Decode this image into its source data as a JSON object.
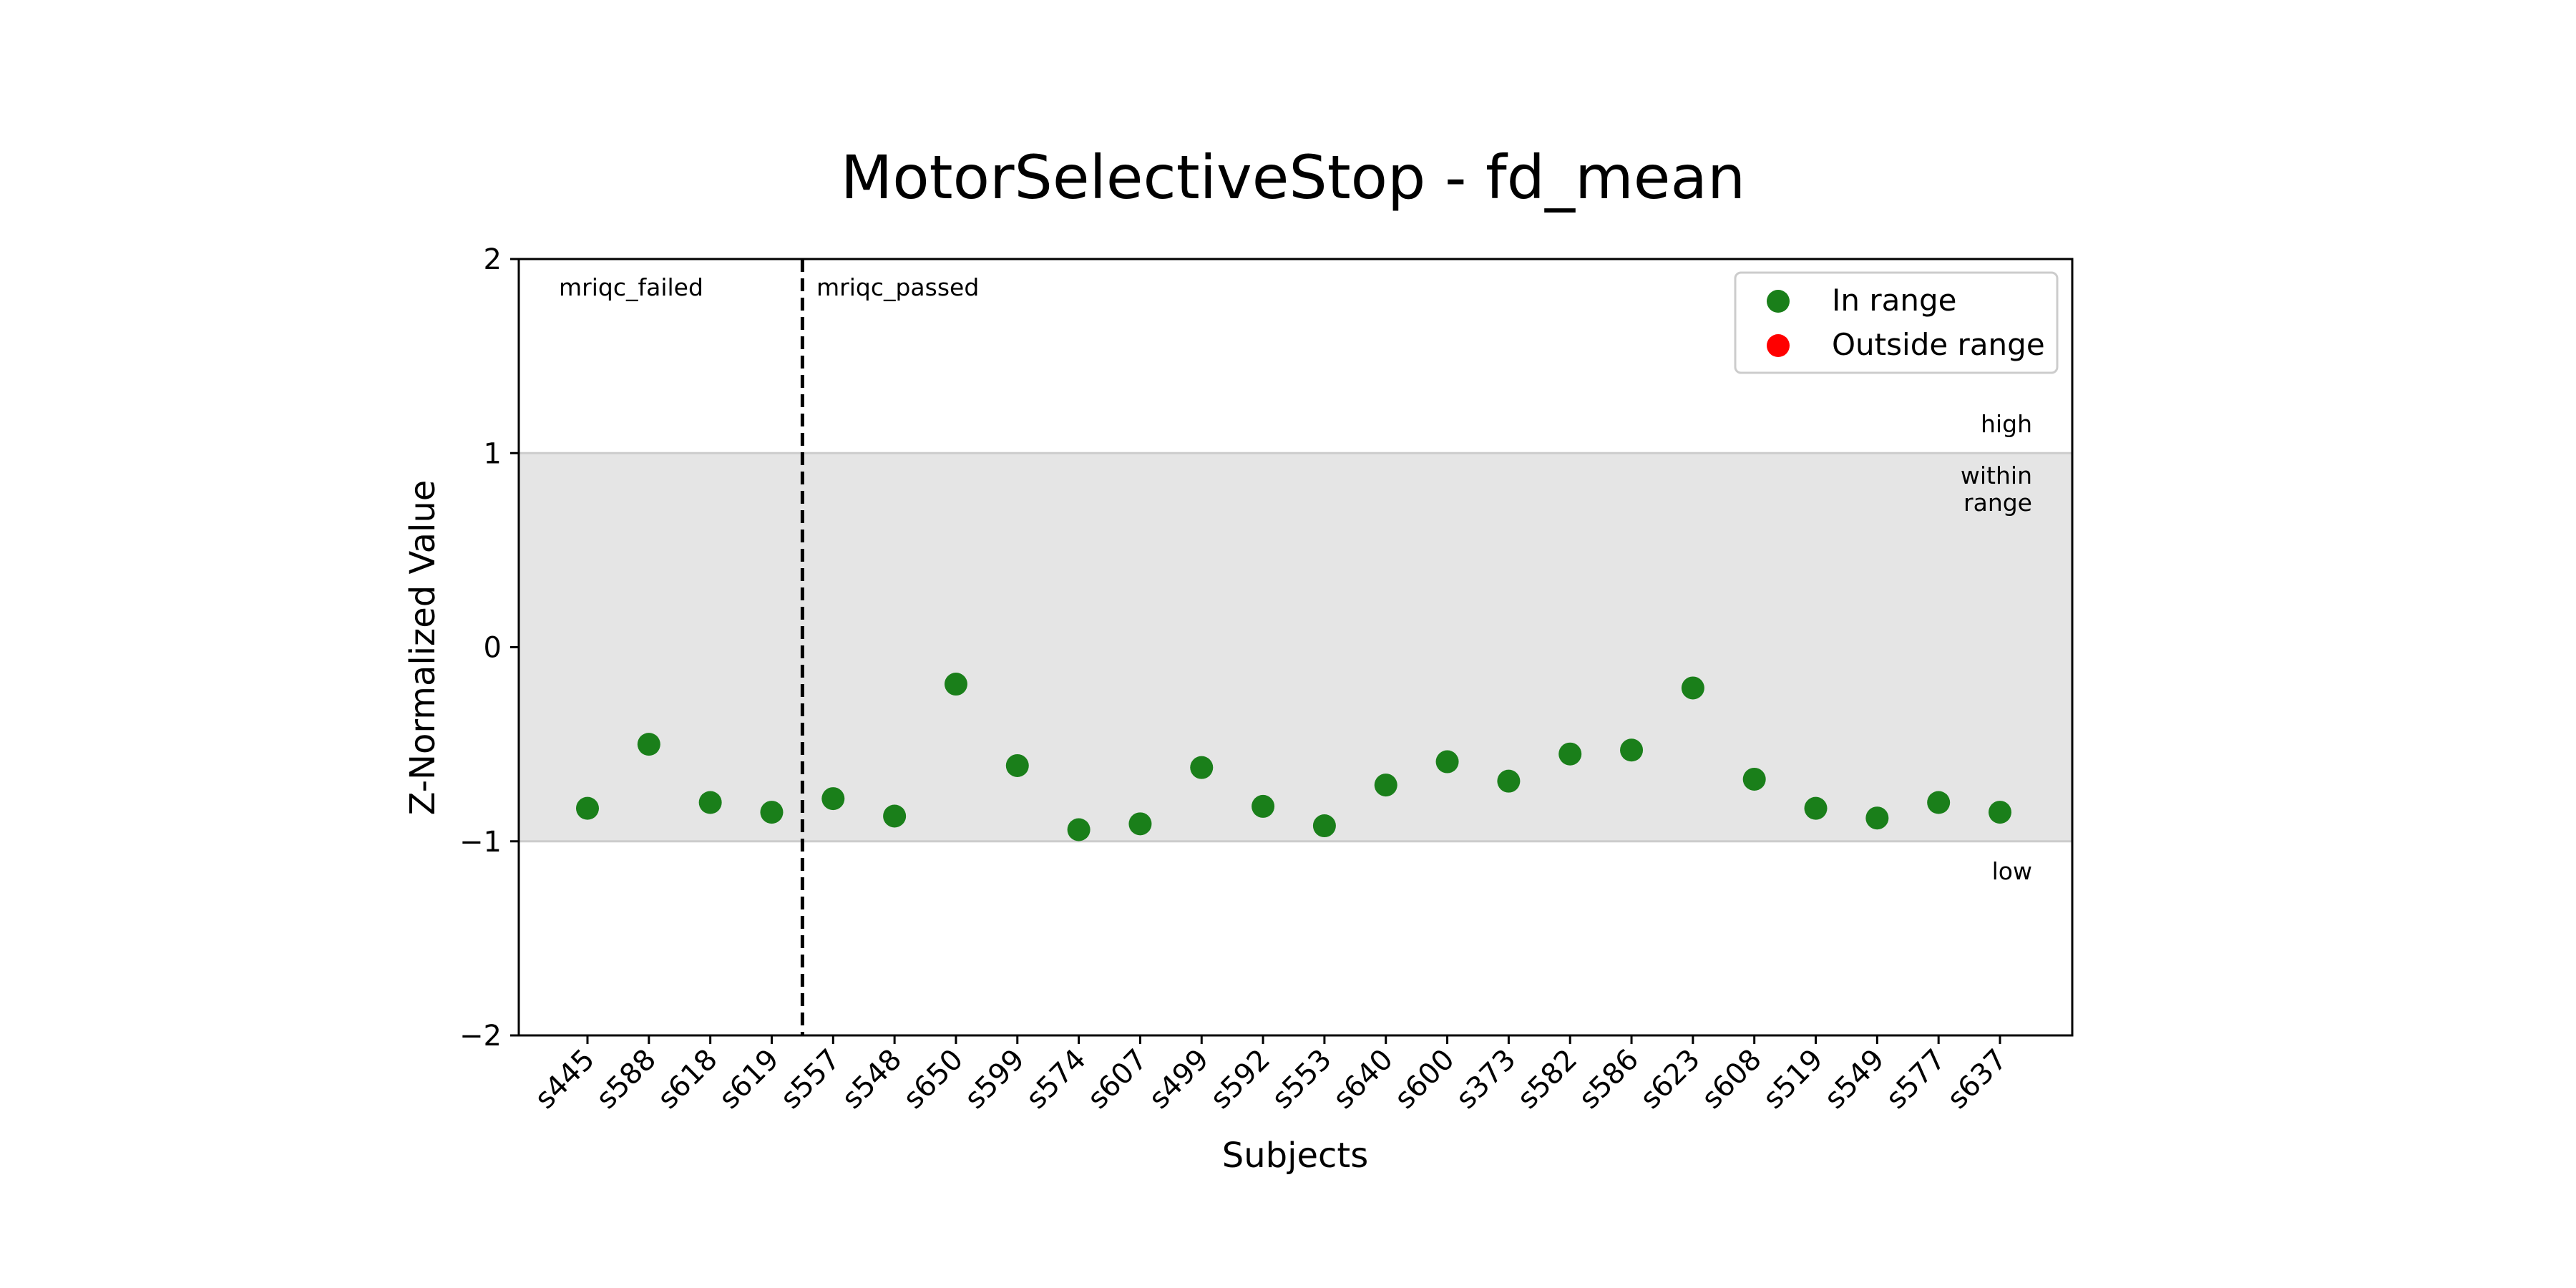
{
  "chart_data": {
    "type": "scatter",
    "title": "MotorSelectiveStop - fd_mean",
    "xlabel": "Subjects",
    "ylabel": "Z-Normalized Value",
    "ylim": [
      -2,
      2
    ],
    "yticks": [
      2,
      1,
      0,
      -1,
      -2
    ],
    "ytick_labels": [
      "2",
      "1",
      "0",
      "−1",
      "−2"
    ],
    "categories": [
      "s445",
      "s588",
      "s618",
      "s619",
      "s557",
      "s548",
      "s650",
      "s599",
      "s574",
      "s607",
      "s499",
      "s592",
      "s553",
      "s640",
      "s600",
      "s373",
      "s582",
      "s586",
      "s623",
      "s608",
      "s519",
      "s549",
      "s577",
      "s637"
    ],
    "series": [
      {
        "name": "In range",
        "color": "#1a7f1a",
        "values": [
          -0.83,
          -0.5,
          -0.8,
          -0.85,
          -0.78,
          -0.87,
          -0.19,
          -0.61,
          -0.94,
          -0.91,
          -0.62,
          -0.82,
          -0.92,
          -0.71,
          -0.59,
          -0.69,
          -0.55,
          -0.53,
          -0.21,
          -0.68,
          -0.83,
          -0.88,
          -0.8,
          -0.85
        ]
      },
      {
        "name": "Outside range",
        "color": "#ff0000",
        "values": []
      }
    ],
    "normal_band": {
      "low": -1,
      "high": 1,
      "color": "#e5e5e5"
    },
    "band_labels": {
      "high": "high",
      "within_line1": "within",
      "within_line2": "range",
      "low": "low"
    },
    "divider": {
      "after_index": 3,
      "left_label": "mriqc_failed",
      "right_label": "mriqc_passed"
    },
    "legend_position": "top-right",
    "grid": false
  }
}
